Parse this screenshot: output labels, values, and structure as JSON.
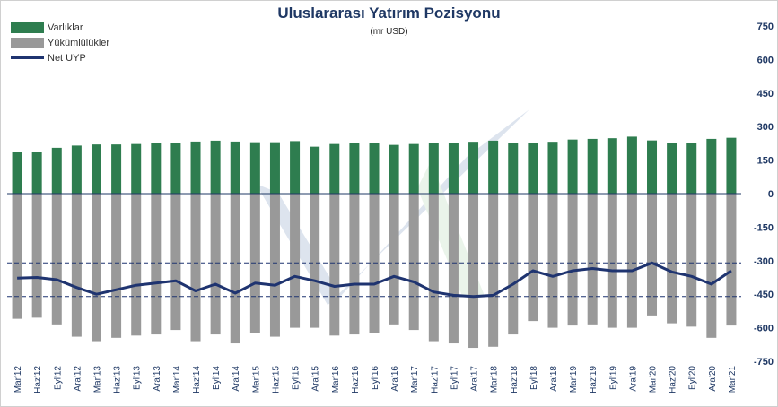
{
  "chart_data": {
    "type": "bar",
    "title": "Uluslararası  Yatırım Pozisyonu",
    "subtitle": "(mr USD)",
    "categories": [
      "Mar'12",
      "Haz'12",
      "Eyl'12",
      "Ara'12",
      "Mar'13",
      "Haz'13",
      "Eyl'13",
      "Ara'13",
      "Mar'14",
      "Haz'14",
      "Eyl'14",
      "Ara'14",
      "Mar'15",
      "Haz'15",
      "Eyl'15",
      "Ara'15",
      "Mar'16",
      "Haz'16",
      "Eyl'16",
      "Ara'16",
      "Mar'17",
      "Haz'17",
      "Eyl'17",
      "Ara'17",
      "Mar'18",
      "Haz'18",
      "Eyl'18",
      "Ara'18",
      "Mar'19",
      "Haz'19",
      "Eyl'19",
      "Ara'19",
      "Mar'20",
      "Haz'20",
      "Eyl'20",
      "Ara'20",
      "Mar'21"
    ],
    "x_tick_labels": [
      "Mar'12",
      "Haz'12",
      "Eyl'12",
      "Ara'12",
      "Mar'13",
      "Haz'13",
      "Eyl'13",
      "Ara'13",
      "Mar'14",
      "Haz'14",
      "Eyl'14",
      "Ara'14",
      "Mar'15",
      "Haz'15",
      "Eyl'15",
      "Ara'15",
      "Mar'16",
      "Haz'16",
      "Eyl'16",
      "Ara'16",
      "Mar'17",
      "Haz'17",
      "Eyl'17",
      "Ara'17",
      "Mar'18",
      "Haz'18",
      "Eyl'18",
      "Ara'18",
      "Mar'19",
      "Haz'19",
      "Eyl'19",
      "Ara'19",
      "Mar'20",
      "Haz'20",
      "Eyl'20",
      "Ara'20",
      "Mar'21"
    ],
    "y_ticks": [
      750,
      600,
      450,
      300,
      150,
      0,
      -150,
      -300,
      -450,
      -600,
      -750
    ],
    "y_tick_labels": [
      "750",
      "600",
      "450",
      "300",
      "150",
      "0",
      "-150",
      "-300",
      "-450",
      "-600",
      "-750"
    ],
    "ylim": [
      -750,
      750
    ],
    "series": [
      {
        "name": "Varlıklar",
        "type": "bar",
        "color": "#2e7d4f",
        "values": [
          187,
          186,
          205,
          215,
          220,
          220,
          222,
          228,
          225,
          233,
          237,
          233,
          230,
          230,
          235,
          210,
          222,
          228,
          225,
          218,
          222,
          225,
          225,
          232,
          237,
          228,
          228,
          232,
          242,
          245,
          248,
          255,
          238,
          228,
          225,
          245,
          250
        ]
      },
      {
        "name": "Yükümlülükler",
        "type": "bar",
        "color": "#999999",
        "values": [
          -560,
          -555,
          -585,
          -640,
          -660,
          -645,
          -635,
          -630,
          -610,
          -660,
          -630,
          -670,
          -625,
          -640,
          -600,
          -600,
          -635,
          -630,
          -625,
          -585,
          -610,
          -660,
          -670,
          -690,
          -685,
          -630,
          -570,
          -600,
          -590,
          -585,
          -600,
          -600,
          -545,
          -580,
          -595,
          -645,
          -590
        ]
      },
      {
        "name": "Net UYP",
        "type": "line",
        "color": "#1f3470",
        "values": [
          -378,
          -375,
          -385,
          -420,
          -450,
          -430,
          -410,
          -400,
          -390,
          -435,
          -405,
          -445,
          -400,
          -410,
          -370,
          -390,
          -415,
          -405,
          -405,
          -370,
          -395,
          -440,
          -455,
          -460,
          -455,
          -405,
          -345,
          -370,
          -345,
          -335,
          -345,
          -345,
          -310,
          -350,
          -370,
          -405,
          -345
        ]
      }
    ],
    "reference_lines": [
      -310,
      -460
    ],
    "legend_position": "top-left",
    "grid": false
  }
}
